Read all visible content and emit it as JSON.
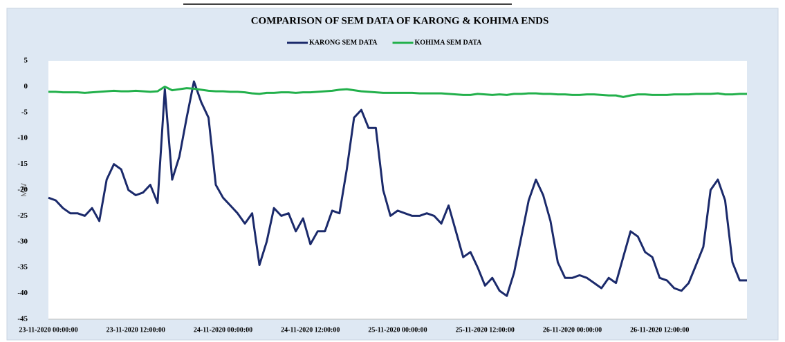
{
  "chart_data": {
    "type": "line",
    "title": "COMPARISON OF SEM DATA OF KARONG & KOHIMA ENDS",
    "y_label": "MW",
    "categories": [
      "23-11-2020 00:00:00",
      null,
      null,
      null,
      null,
      null,
      null,
      null,
      null,
      null,
      null,
      null,
      "23-11-2020 12:00:00",
      null,
      null,
      null,
      null,
      null,
      null,
      null,
      null,
      null,
      null,
      null,
      "24-11-2020 00:00:00",
      null,
      null,
      null,
      null,
      null,
      null,
      null,
      null,
      null,
      null,
      null,
      "24-11-2020 12:00:00",
      null,
      null,
      null,
      null,
      null,
      null,
      null,
      null,
      null,
      null,
      null,
      "25-11-2020 00:00:00",
      null,
      null,
      null,
      null,
      null,
      null,
      null,
      null,
      null,
      null,
      null,
      "25-11-2020 12:00:00",
      null,
      null,
      null,
      null,
      null,
      null,
      null,
      null,
      null,
      null,
      null,
      "26-11-2020 00:00:00",
      null,
      null,
      null,
      null,
      null,
      null,
      null,
      null,
      null,
      null,
      null,
      "26-11-2020 12:00:00",
      null,
      null,
      null,
      null,
      null,
      null,
      null,
      null,
      null,
      null,
      null,
      null
    ],
    "series": [
      {
        "name": "KARONG SEM DATA",
        "color": "#1b2a6b",
        "values": [
          -21.5,
          -22,
          -23.5,
          -24.5,
          -24.5,
          -25,
          -23.5,
          -26,
          -18,
          -15,
          -16,
          -20,
          -21,
          -20.5,
          -19,
          -22.5,
          -0.5,
          -18,
          -13.5,
          -6,
          1,
          -3,
          -6,
          -19,
          -21.5,
          -23,
          -24.5,
          -26.5,
          -24.5,
          -34.5,
          -30,
          -23.5,
          -25,
          -24.5,
          -28,
          -25.5,
          -30.5,
          -28,
          -28,
          -24,
          -24.5,
          -16,
          -6,
          -4.5,
          -8,
          -8,
          -20,
          -25,
          -24,
          -24.5,
          -25,
          -25,
          -24.5,
          -25,
          -26.5,
          -23,
          -28,
          -33,
          -32,
          -35,
          -38.5,
          -37,
          -39.5,
          -40.5,
          -36,
          -29,
          -22,
          -18,
          -21,
          -26,
          -34,
          -37,
          -37,
          -36.5,
          -37,
          -38,
          -39,
          -37,
          -38,
          -33,
          -28,
          -29,
          -32,
          -33,
          -37,
          -37.5,
          -39,
          -39.5,
          -38,
          -34.5,
          -31,
          -20,
          -18,
          -22,
          -34,
          -37.5,
          -37.5
        ]
      },
      {
        "name": "KOHIMA SEM DATA",
        "color": "#22b04b",
        "values": [
          -1,
          -1,
          -1.1,
          -1.1,
          -1.1,
          -1.2,
          -1.1,
          -1,
          -0.9,
          -0.8,
          -0.9,
          -0.9,
          -0.8,
          -0.9,
          -1,
          -0.9,
          0,
          -0.7,
          -0.5,
          -0.3,
          -0.4,
          -0.6,
          -0.8,
          -0.9,
          -0.9,
          -1,
          -1,
          -1.1,
          -1.3,
          -1.4,
          -1.2,
          -1.2,
          -1.1,
          -1.1,
          -1.2,
          -1.1,
          -1.1,
          -1,
          -0.9,
          -0.8,
          -0.6,
          -0.5,
          -0.7,
          -0.9,
          -1,
          -1.1,
          -1.2,
          -1.2,
          -1.2,
          -1.2,
          -1.2,
          -1.3,
          -1.3,
          -1.3,
          -1.3,
          -1.4,
          -1.5,
          -1.6,
          -1.6,
          -1.4,
          -1.5,
          -1.6,
          -1.5,
          -1.6,
          -1.4,
          -1.4,
          -1.3,
          -1.3,
          -1.4,
          -1.4,
          -1.5,
          -1.5,
          -1.6,
          -1.6,
          -1.5,
          -1.5,
          -1.6,
          -1.7,
          -1.7,
          -2,
          -1.7,
          -1.5,
          -1.5,
          -1.6,
          -1.6,
          -1.6,
          -1.5,
          -1.5,
          -1.5,
          -1.4,
          -1.4,
          -1.4,
          -1.3,
          -1.5,
          -1.5,
          -1.4,
          -1.4
        ]
      }
    ],
    "ylim": [
      -45,
      5
    ],
    "yticks": [
      -45,
      -40,
      -35,
      -30,
      -25,
      -20,
      -15,
      -10,
      -5,
      0,
      5
    ],
    "grid": false
  }
}
